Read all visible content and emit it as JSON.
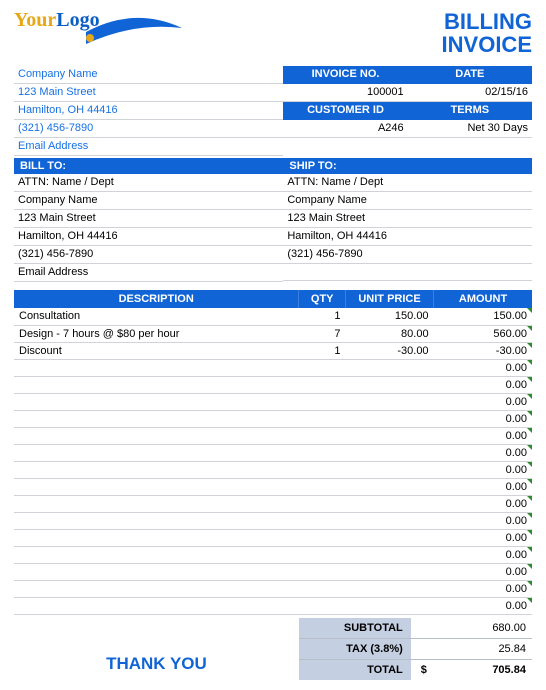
{
  "logo": {
    "line1": "Your",
    "line2": "Logo"
  },
  "title": {
    "line1": "BILLING",
    "line2": "INVOICE"
  },
  "company": {
    "name": "Company Name",
    "street": "123 Main Street",
    "city": "Hamilton, OH  44416",
    "phone": "(321) 456-7890",
    "email": "Email Address"
  },
  "meta": {
    "invoice_label": "INVOICE NO.",
    "invoice_no": "100001",
    "date_label": "DATE",
    "date": "02/15/16",
    "customer_label": "CUSTOMER ID",
    "customer_id": "A246",
    "terms_label": "TERMS",
    "terms": "Net 30 Days"
  },
  "billto": {
    "label": "BILL TO:",
    "attn": "ATTN: Name / Dept",
    "company": "Company Name",
    "street": "123 Main Street",
    "city": "Hamilton, OH  44416",
    "phone": "(321) 456-7890",
    "email": "Email Address"
  },
  "shipto": {
    "label": "SHIP TO:",
    "attn": "ATTN: Name / Dept",
    "company": "Company Name",
    "street": "123 Main Street",
    "city": "Hamilton, OH  44416",
    "phone": "(321) 456-7890"
  },
  "items_header": {
    "desc": "DESCRIPTION",
    "qty": "QTY",
    "unit": "UNIT PRICE",
    "amt": "AMOUNT"
  },
  "items": [
    {
      "desc": "Consultation",
      "qty": "1",
      "unit": "150.00",
      "amt": "150.00"
    },
    {
      "desc": "Design - 7 hours @ $80 per hour",
      "qty": "7",
      "unit": "80.00",
      "amt": "560.00"
    },
    {
      "desc": "Discount",
      "qty": "1",
      "unit": "-30.00",
      "amt": "-30.00"
    }
  ],
  "empty_rows_amt": "0.00",
  "empty_row_count": 15,
  "thanks": "THANK YOU",
  "totals": {
    "subtotal_label": "SUBTOTAL",
    "subtotal": "680.00",
    "tax_label": "TAX (3.8%)",
    "tax": "25.84",
    "total_label": "TOTAL",
    "currency": "$",
    "total": "705.84"
  },
  "colors": {
    "primary": "#1064d6",
    "link": "#1771e6",
    "logo_gold": "#e6a817",
    "totals_bg": "#c4cfe2",
    "border": "#d0d3d8",
    "marker": "#2e8b2e"
  }
}
